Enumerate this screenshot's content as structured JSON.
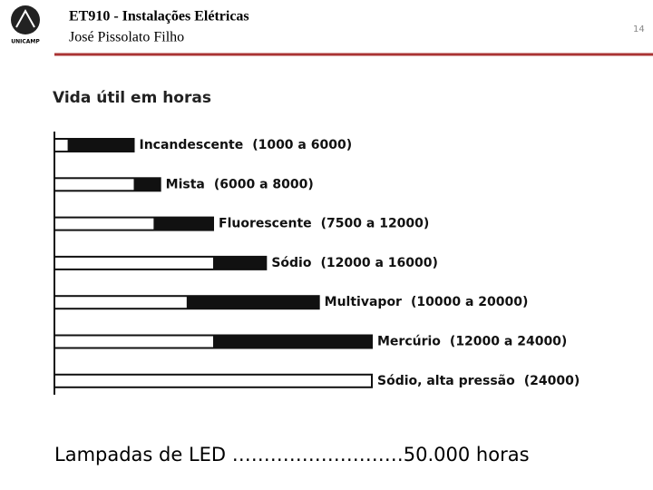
{
  "header": {
    "title": "ET910 - Instalações Elétricas",
    "author": "José Pissolato Filho",
    "logo": "UNICAMP",
    "page": "14"
  },
  "chart_data": {
    "type": "range-bar",
    "title": "Vida útil em horas",
    "categories": [
      "Incandescente",
      "Mista",
      "Fluorescente",
      "Sódio",
      "Multivapor",
      "Mercúrio",
      "Sódio, alta pressão"
    ],
    "low": [
      1000,
      6000,
      7500,
      12000,
      10000,
      12000,
      null
    ],
    "high": [
      6000,
      8000,
      12000,
      16000,
      20000,
      24000,
      24000
    ],
    "value_labels": [
      "(1000 a 6000)",
      "(6000 a 8000)",
      "(7500 a 12000)",
      "(12000 a 16000)",
      "(10000 a 20000)",
      "(12000 a 24000)",
      "(24000)"
    ],
    "xlim": [
      0,
      24000
    ],
    "color": "#111111"
  },
  "footer": "Lampadas de LED ………………………50.000 horas"
}
